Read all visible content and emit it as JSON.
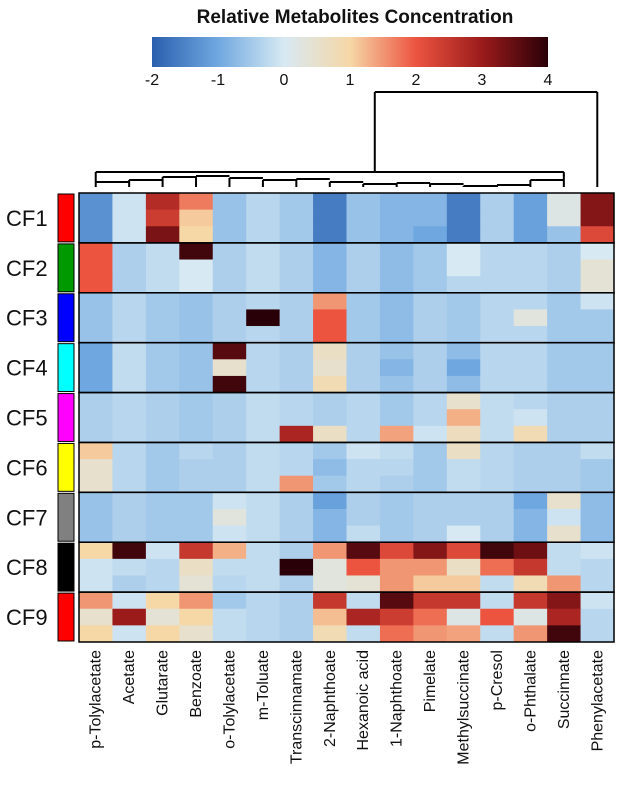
{
  "chart_data": {
    "type": "heatmap",
    "title": "Relative Metabolites Concentration",
    "colorbar": {
      "range": [
        -2,
        4
      ],
      "ticks": [
        "-2",
        "-1",
        "0",
        "1",
        "2",
        "3",
        "4"
      ],
      "colors": [
        "#2a5fae",
        "#6fa8e0",
        "#d7e9f3",
        "#f6d7a6",
        "#ec5440",
        "#9b1b1b",
        "#2a0008"
      ]
    },
    "columns": [
      "p-Tolylacetate",
      "Acetate",
      "Glutarate",
      "Benzoate",
      "o-Tolylacetate",
      "m-Toluate",
      "Transcinnamate",
      "2-Naphthoate",
      "Hexanoic acid",
      "1-Naphthoate",
      "Pimelate",
      "Methylsuccinate",
      "p-Cresol",
      "o-Phthalate",
      "Succinnate",
      "Phenylacetate"
    ],
    "groups": [
      {
        "label": "CF1",
        "color": "#ff0000",
        "rows": [
          [
            -1.3,
            -0.1,
            2.7,
            1.7,
            -0.6,
            -0.3,
            -0.5,
            -1.6,
            -0.6,
            -0.8,
            -0.8,
            -1.6,
            -0.4,
            -1.1,
            0.2,
            3.2
          ],
          [
            -1.3,
            -0.1,
            2.4,
            1.1,
            -0.6,
            -0.3,
            -0.5,
            -1.6,
            -0.6,
            -0.8,
            -0.8,
            -1.6,
            -0.4,
            -1.1,
            0.2,
            3.2
          ],
          [
            -1.3,
            -0.1,
            3.3,
            1.0,
            -0.6,
            -0.3,
            -0.5,
            -1.6,
            -0.6,
            -0.8,
            -1.0,
            -1.6,
            -0.4,
            -1.1,
            -0.6,
            2.2
          ]
        ]
      },
      {
        "label": "CF2",
        "color": "#009900",
        "rows": [
          [
            2.0,
            -0.4,
            -0.2,
            3.8,
            -0.4,
            -0.2,
            -0.4,
            -0.8,
            -0.4,
            -0.7,
            -0.5,
            0.0,
            -0.3,
            -0.3,
            -0.4,
            0.0
          ],
          [
            2.0,
            -0.4,
            -0.2,
            0.0,
            -0.4,
            -0.2,
            -0.4,
            -0.8,
            -0.4,
            -0.7,
            -0.5,
            0.0,
            -0.3,
            -0.3,
            -0.4,
            0.4
          ],
          [
            2.0,
            -0.4,
            -0.2,
            0.0,
            -0.4,
            -0.2,
            -0.4,
            -0.8,
            -0.4,
            -0.7,
            -0.5,
            -0.3,
            -0.3,
            -0.3,
            -0.4,
            0.4
          ]
        ]
      },
      {
        "label": "CF3",
        "color": "#0000ff",
        "rows": [
          [
            -0.6,
            -0.3,
            -0.5,
            -0.6,
            -0.4,
            -0.3,
            -0.4,
            1.5,
            -0.5,
            -0.7,
            -0.4,
            -0.5,
            -0.3,
            -0.3,
            -0.5,
            -0.1
          ],
          [
            -0.6,
            -0.3,
            -0.5,
            -0.6,
            -0.4,
            4.0,
            -0.4,
            2.0,
            -0.5,
            -0.7,
            -0.4,
            -0.5,
            -0.3,
            0.3,
            -0.5,
            -0.5
          ],
          [
            -0.6,
            -0.3,
            -0.5,
            -0.6,
            -0.4,
            -0.3,
            -0.4,
            2.0,
            -0.5,
            -0.7,
            -0.4,
            -0.5,
            -0.3,
            -0.3,
            -0.5,
            -0.5
          ]
        ]
      },
      {
        "label": "CF4",
        "color": "#00ffff",
        "rows": [
          [
            -1.0,
            -0.2,
            -0.5,
            -0.6,
            3.6,
            -0.3,
            -0.4,
            0.6,
            -0.4,
            -0.6,
            -0.4,
            -0.7,
            -0.3,
            -0.3,
            -0.5,
            -0.5
          ],
          [
            -1.0,
            -0.2,
            -0.5,
            -0.6,
            0.5,
            -0.3,
            -0.4,
            0.5,
            -0.4,
            -0.8,
            -0.4,
            -1.0,
            -0.3,
            -0.3,
            -0.5,
            -0.5
          ],
          [
            -1.0,
            -0.2,
            -0.5,
            -0.6,
            3.8,
            -0.3,
            -0.4,
            0.8,
            -0.4,
            -0.6,
            -0.4,
            -0.7,
            -0.3,
            -0.3,
            -0.5,
            -0.5
          ]
        ]
      },
      {
        "label": "CF5",
        "color": "#ff00ff",
        "rows": [
          [
            -0.4,
            -0.3,
            -0.4,
            -0.5,
            -0.4,
            -0.2,
            -0.3,
            -0.4,
            -0.3,
            -0.5,
            -0.3,
            0.5,
            -0.2,
            -0.3,
            -0.4,
            -0.4
          ],
          [
            -0.4,
            -0.3,
            -0.4,
            -0.5,
            -0.4,
            -0.2,
            -0.3,
            -0.4,
            -0.3,
            -0.5,
            -0.3,
            1.3,
            -0.2,
            -0.1,
            -0.4,
            -0.4
          ],
          [
            -0.4,
            -0.3,
            -0.4,
            -0.5,
            -0.4,
            -0.2,
            2.8,
            0.6,
            -0.3,
            1.4,
            -0.1,
            0.7,
            -0.2,
            0.8,
            -0.4,
            -0.4
          ]
        ]
      },
      {
        "label": "CF6",
        "color": "#ffff00",
        "rows": [
          [
            1.1,
            -0.3,
            -0.5,
            -0.3,
            -0.4,
            -0.2,
            -0.3,
            -0.5,
            -0.1,
            -0.2,
            -0.5,
            0.6,
            -0.3,
            -0.4,
            -0.4,
            -0.2
          ],
          [
            0.5,
            -0.3,
            -0.5,
            -0.4,
            -0.4,
            -0.2,
            -0.3,
            -0.7,
            -0.3,
            -0.3,
            -0.5,
            -0.2,
            -0.3,
            -0.4,
            -0.4,
            -0.5
          ],
          [
            0.5,
            -0.3,
            -0.5,
            -0.4,
            -0.4,
            -0.2,
            1.5,
            -0.5,
            -0.3,
            -0.4,
            -0.5,
            -0.2,
            -0.3,
            -0.4,
            -0.4,
            -0.5
          ]
        ]
      },
      {
        "label": "CF7",
        "color": "#808080",
        "rows": [
          [
            -0.6,
            -0.4,
            -0.5,
            -0.5,
            -0.1,
            -0.2,
            -0.4,
            -1.1,
            -0.4,
            -0.5,
            -0.4,
            -0.4,
            -0.4,
            -1.0,
            0.5,
            -0.7
          ],
          [
            -0.6,
            -0.4,
            -0.5,
            -0.5,
            0.3,
            -0.2,
            -0.4,
            -0.8,
            -0.4,
            -0.5,
            -0.4,
            -0.4,
            -0.4,
            -0.8,
            -0.1,
            -0.7
          ],
          [
            -0.6,
            -0.4,
            -0.5,
            -0.5,
            -0.1,
            -0.2,
            -0.4,
            -0.8,
            -0.2,
            -0.5,
            -0.4,
            0.0,
            -0.4,
            -0.8,
            0.5,
            -0.7
          ]
        ]
      },
      {
        "label": "CF8",
        "color": "#000000",
        "rows": [
          [
            1.0,
            3.8,
            -0.1,
            2.5,
            1.3,
            -0.2,
            -0.4,
            1.5,
            3.6,
            2.2,
            3.2,
            2.2,
            3.8,
            3.4,
            -0.2,
            -0.1
          ],
          [
            -0.1,
            -0.2,
            -0.3,
            0.6,
            -0.2,
            -0.2,
            4.0,
            0.3,
            2.0,
            1.5,
            1.5,
            0.6,
            1.8,
            2.5,
            -0.2,
            -0.3
          ],
          [
            -0.1,
            -0.4,
            -0.3,
            0.4,
            -0.3,
            -0.2,
            -0.4,
            0.3,
            0.4,
            1.5,
            1.1,
            1.1,
            -0.2,
            0.8,
            1.5,
            -0.3
          ]
        ]
      },
      {
        "label": "CF9",
        "color": "#ff0000",
        "rows": [
          [
            1.5,
            -0.1,
            1.0,
            1.5,
            -0.5,
            -0.3,
            -0.4,
            2.5,
            -0.2,
            3.6,
            2.5,
            2.5,
            -0.2,
            2.5,
            3.2,
            -0.1
          ],
          [
            0.5,
            3.0,
            0.4,
            1.0,
            -0.2,
            -0.3,
            -0.4,
            1.2,
            2.8,
            2.4,
            1.8,
            0.2,
            2.0,
            0.2,
            2.8,
            -0.3
          ],
          [
            1.0,
            -0.1,
            1.0,
            0.5,
            -0.2,
            -0.3,
            -0.4,
            0.8,
            -0.2,
            1.8,
            1.5,
            1.4,
            -0.2,
            1.5,
            3.8,
            -0.3
          ]
        ]
      }
    ],
    "dendrogram": {
      "leaves": [
        "p-Tolylacetate",
        "Acetate",
        "Glutarate",
        "Benzoate",
        "o-Tolylacetate",
        "m-Toluate",
        "Transcinnamate",
        "2-Naphthoate",
        "Hexanoic acid",
        "1-Naphthoate",
        "Pimelate",
        "Methylsuccinate",
        "p-Cresol",
        "o-Phthalate",
        "Succinnate",
        "Phenylacetate"
      ]
    }
  }
}
